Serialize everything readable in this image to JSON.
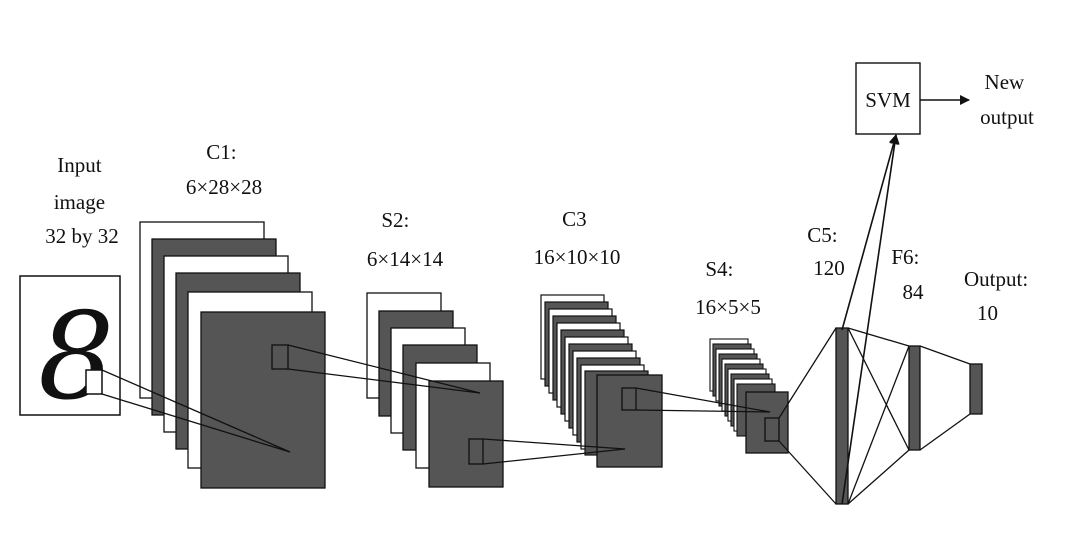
{
  "input": {
    "label_lines": [
      "Input",
      "image",
      "32 by 32"
    ],
    "digit": "8"
  },
  "layers": [
    {
      "id": "c1",
      "label_lines": [
        "C1:",
        "6×28×28"
      ]
    },
    {
      "id": "s2",
      "label_lines": [
        "S2:",
        "6×14×14"
      ]
    },
    {
      "id": "c3",
      "label_lines": [
        "C3",
        "16×10×10"
      ]
    },
    {
      "id": "s4",
      "label_lines": [
        "S4:",
        "16×5×5"
      ]
    },
    {
      "id": "c5",
      "label_lines": [
        "C5:",
        "120"
      ]
    },
    {
      "id": "f6",
      "label_lines": [
        "F6:",
        "84"
      ]
    },
    {
      "id": "output",
      "label_lines": [
        "Output:",
        "10"
      ]
    }
  ],
  "svm": {
    "label": "SVM"
  },
  "new_output": {
    "label_lines": [
      "New",
      "output"
    ]
  },
  "colors": {
    "map_fill": "#555555",
    "stroke": "#111111",
    "background": "#ffffff"
  }
}
